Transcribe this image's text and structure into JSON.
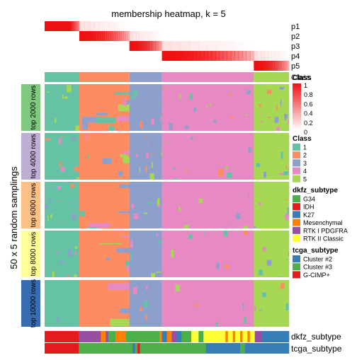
{
  "chart_data": {
    "type": "heatmap",
    "title": "membership heatmap, k = 5",
    "ylabel": "50 x 5 random samplings",
    "membership_rows": [
      "p1",
      "p2",
      "p3",
      "p4",
      "p5"
    ],
    "class_row_label": "Class",
    "row_groups": [
      "top 2000 rows",
      "top 4000 rows",
      "top 6000 rows",
      "top 8000 rows",
      "top 10000 rows"
    ],
    "row_group_colors": [
      "#7fc97f",
      "#beaed4",
      "#fdc086",
      "#ffff99",
      "#386cb0"
    ],
    "bottom_annotations": [
      "dkfz_subtype",
      "tcga_subtype"
    ],
    "membership_legend": {
      "title": "Class",
      "ticks": [
        "1",
        "0.8",
        "0.6",
        "0.4",
        "0.2",
        "0"
      ]
    },
    "class_legend": {
      "title": "Class",
      "items": [
        {
          "label": "1",
          "color": "#66c2a5"
        },
        {
          "label": "2",
          "color": "#fc8d62"
        },
        {
          "label": "3",
          "color": "#8da0cb"
        },
        {
          "label": "4",
          "color": "#e78ac3"
        },
        {
          "label": "5",
          "color": "#a6d854"
        }
      ]
    },
    "dkfz_legend": {
      "title": "dkfz_subtype",
      "items": [
        {
          "label": "G34",
          "color": "#4daf4a"
        },
        {
          "label": "IDH",
          "color": "#e41a1c"
        },
        {
          "label": "K27",
          "color": "#377eb8"
        },
        {
          "label": "Mesenchymal",
          "color": "#ff7f00"
        },
        {
          "label": "RTK I PDGFRA",
          "color": "#984ea3"
        },
        {
          "label": "RTK II Classic",
          "color": "#ffff33"
        }
      ]
    },
    "tcga_legend": {
      "title": "tcga_subtype",
      "items": [
        {
          "label": "Cluster #2",
          "color": "#377eb8"
        },
        {
          "label": "Cluster #3",
          "color": "#4daf4a"
        },
        {
          "label": "G-CIMP+",
          "color": "#e41a1c"
        }
      ]
    },
    "class_blocks": [
      {
        "class": 1,
        "fraction": 0.142
      },
      {
        "class": 2,
        "fraction": 0.205
      },
      {
        "class": 3,
        "fraction": 0.133
      },
      {
        "class": 4,
        "fraction": 0.376
      },
      {
        "class": 5,
        "fraction": 0.144
      }
    ]
  }
}
